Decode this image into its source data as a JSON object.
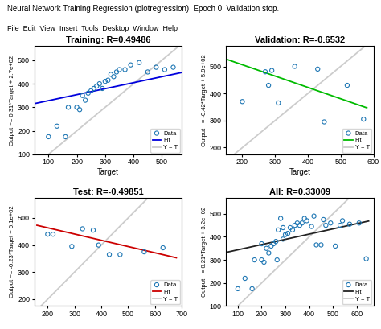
{
  "title": "Neural Network Training Regression (plotregression), Epoch 0, Validation stop.",
  "subtitle": "File  Edit  View  Insert  Tools  Desktop  Window  Help",
  "chart_data": [
    {
      "type": "scatter",
      "title": "Training: R=0.49486",
      "xlabel": "Target",
      "ylabel": "Output ~= 0.31*Target + 2.7e+02",
      "xlim": [
        50,
        570
      ],
      "ylim": [
        100,
        560
      ],
      "xticks": [
        100,
        200,
        300,
        400,
        500
      ],
      "yticks": [
        100,
        200,
        300,
        400,
        500
      ],
      "legend": "lower right",
      "series": [
        {
          "name": "Data",
          "type": "scatter",
          "marker": "o",
          "x": [
            100,
            130,
            160,
            170,
            200,
            210,
            220,
            230,
            240,
            250,
            260,
            270,
            280,
            290,
            300,
            310,
            320,
            330,
            340,
            350,
            370,
            390,
            420,
            450,
            480,
            510,
            540
          ],
          "values": [
            175,
            220,
            175,
            300,
            300,
            290,
            350,
            330,
            360,
            370,
            380,
            390,
            400,
            380,
            410,
            415,
            440,
            430,
            450,
            460,
            460,
            480,
            490,
            450,
            470,
            460,
            470
          ]
        },
        {
          "name": "Fit",
          "type": "line",
          "color": "#0000dd",
          "line_style": "solid",
          "x": [
            50,
            570
          ],
          "values": [
            315.5,
            447.7
          ]
        },
        {
          "name": "Y = T",
          "type": "line",
          "color": "#cccccc",
          "line_style": "solid",
          "x": [
            100,
            560
          ],
          "values": [
            100,
            560
          ]
        }
      ]
    },
    {
      "type": "scatter",
      "title": "Validation: R=-0.6532",
      "xlabel": "Target",
      "ylabel": "Output ~= -0.42*Target + 5.9e+02",
      "xlim": [
        150,
        600
      ],
      "ylim": [
        175,
        575
      ],
      "xticks": [
        200,
        300,
        400,
        500,
        600
      ],
      "yticks": [
        200,
        300,
        400,
        500
      ],
      "legend": "lower right",
      "series": [
        {
          "name": "Data",
          "type": "scatter",
          "marker": "o",
          "x": [
            200,
            270,
            280,
            290,
            310,
            360,
            430,
            450,
            520,
            570
          ],
          "values": [
            370,
            480,
            430,
            485,
            365,
            500,
            490,
            295,
            430,
            305
          ]
        },
        {
          "name": "Fit",
          "type": "line",
          "color": "#00bb00",
          "line_style": "solid",
          "x": [
            150,
            580
          ],
          "values": [
            527,
            347
          ]
        },
        {
          "name": "Y = T",
          "type": "line",
          "color": "#cccccc",
          "line_style": "solid",
          "x": [
            175,
            575
          ],
          "values": [
            175,
            575
          ]
        }
      ]
    },
    {
      "type": "scatter",
      "title": "Test: R=-0.49851",
      "ylabel": "Output ~= -0.23*Target + 5.1e+02",
      "xlim": [
        150,
        700
      ],
      "ylim": [
        175,
        575
      ],
      "xticks": [
        200,
        300,
        400,
        500,
        600,
        700
      ],
      "yticks": [
        200,
        300,
        400,
        500
      ],
      "legend": "lower right",
      "series": [
        {
          "name": "Data",
          "type": "scatter",
          "marker": "o",
          "x": [
            200,
            220,
            290,
            330,
            370,
            390,
            430,
            470,
            560,
            630
          ],
          "values": [
            440,
            440,
            395,
            460,
            455,
            400,
            365,
            365,
            375,
            390
          ]
        },
        {
          "name": "Fit",
          "type": "line",
          "color": "#cc0000",
          "line_style": "solid",
          "x": [
            160,
            680
          ],
          "values": [
            473,
            353
          ]
        },
        {
          "name": "Y = T",
          "type": "line",
          "color": "#cccccc",
          "line_style": "solid",
          "x": [
            175,
            575
          ],
          "values": [
            175,
            575
          ]
        }
      ]
    },
    {
      "type": "scatter",
      "title": "All: R=0.33009",
      "ylabel": "Output ~= 0.21*Target + 3.2e+02",
      "xlim": [
        50,
        670
      ],
      "ylim": [
        100,
        570
      ],
      "xticks": [
        100,
        200,
        300,
        400,
        500,
        600
      ],
      "yticks": [
        100,
        200,
        300,
        400,
        500
      ],
      "legend": "lower right",
      "series": [
        {
          "name": "Data",
          "type": "scatter",
          "marker": "o",
          "x": [
            100,
            130,
            160,
            170,
            200,
            200,
            210,
            220,
            230,
            240,
            250,
            260,
            265,
            270,
            280,
            290,
            290,
            300,
            310,
            320,
            330,
            340,
            350,
            360,
            370,
            380,
            390,
            410,
            420,
            430,
            450,
            460,
            470,
            490,
            510,
            530,
            540,
            570,
            610,
            640
          ],
          "values": [
            175,
            220,
            175,
            300,
            300,
            370,
            290,
            350,
            330,
            360,
            370,
            380,
            300,
            430,
            480,
            440,
            390,
            410,
            415,
            440,
            430,
            450,
            460,
            450,
            460,
            480,
            470,
            445,
            490,
            365,
            365,
            475,
            450,
            460,
            360,
            450,
            470,
            455,
            460,
            305
          ]
        },
        {
          "name": "Fit",
          "type": "line",
          "color": "#222222",
          "line_style": "solid",
          "x": [
            50,
            650
          ],
          "values": [
            332.5,
            468.5
          ]
        },
        {
          "name": "Y = T",
          "type": "line",
          "color": "#cccccc",
          "line_style": "solid",
          "x": [
            100,
            570
          ],
          "values": [
            100,
            570
          ]
        }
      ]
    }
  ]
}
